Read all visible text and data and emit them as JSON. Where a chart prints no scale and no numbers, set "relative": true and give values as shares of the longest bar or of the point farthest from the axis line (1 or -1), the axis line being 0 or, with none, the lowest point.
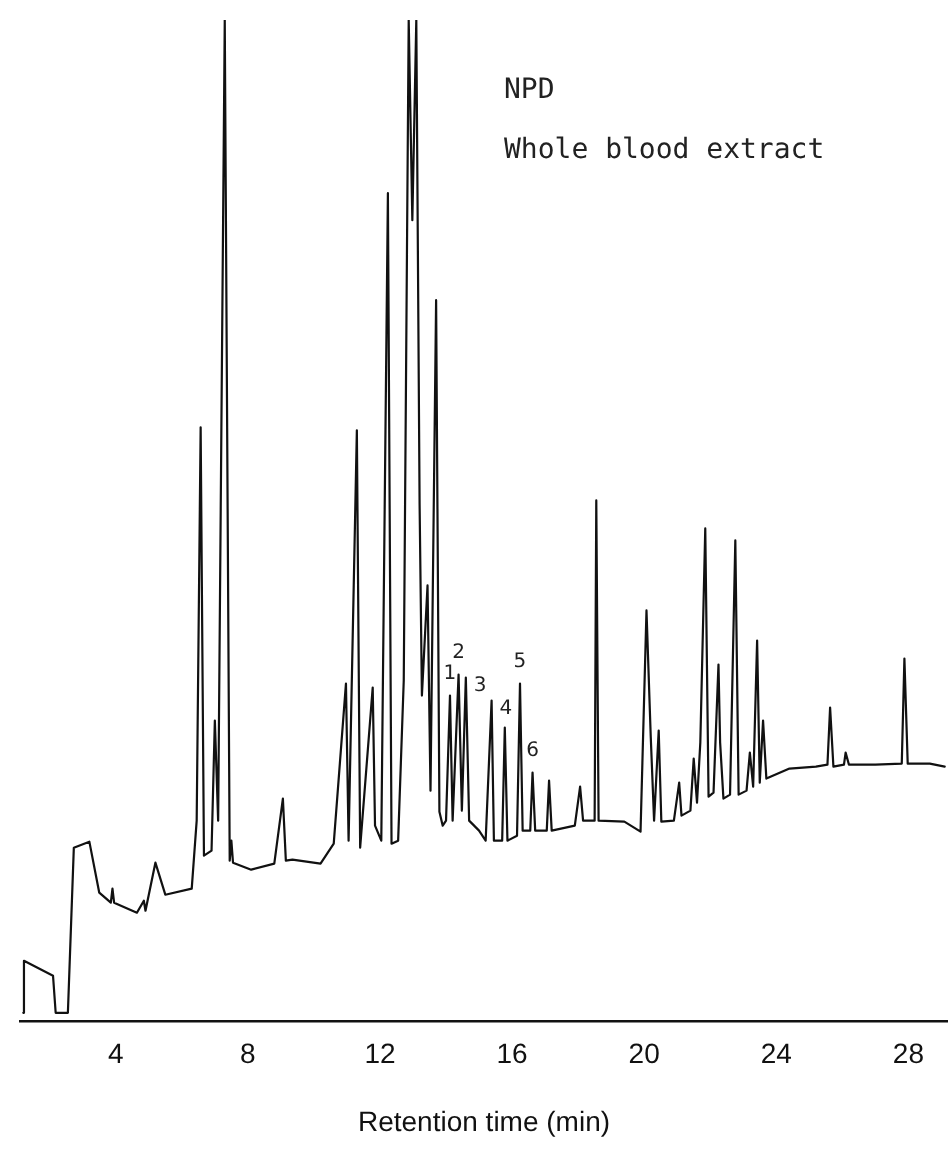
{
  "chart_data": {
    "type": "line",
    "relative": true,
    "xlabel": "Retention time (min)",
    "xlim": [
      1.1,
      29.2
    ],
    "xticks": [
      4,
      8,
      12,
      16,
      20,
      24,
      28
    ],
    "grid": false,
    "legend": false,
    "x": [
      1.2,
      1.22,
      2.1,
      2.18,
      2.55,
      2.73,
      3.2,
      3.5,
      3.85,
      3.9,
      3.95,
      4.64,
      4.85,
      4.9,
      5.2,
      5.5,
      6.3,
      6.45,
      6.57,
      6.67,
      6.9,
      7.0,
      7.1,
      7.3,
      7.45,
      7.5,
      7.55,
      8.1,
      8.8,
      9.06,
      9.15,
      9.35,
      10.2,
      10.6,
      10.97,
      11.05,
      11.3,
      11.4,
      11.78,
      11.85,
      12.04,
      12.24,
      12.35,
      12.55,
      12.72,
      12.87,
      12.98,
      13.1,
      13.2,
      13.27,
      13.44,
      13.53,
      13.7,
      13.8,
      13.9,
      14.0,
      14.12,
      14.2,
      14.38,
      14.48,
      14.6,
      14.7,
      15.0,
      15.2,
      15.38,
      15.45,
      15.7,
      15.78,
      15.86,
      16.15,
      16.24,
      16.32,
      16.55,
      16.62,
      16.7,
      17.05,
      17.12,
      17.2,
      17.9,
      18.06,
      18.15,
      18.5,
      18.55,
      18.62,
      19.4,
      19.89,
      20.07,
      20.2,
      20.3,
      20.44,
      20.52,
      20.9,
      21.06,
      21.13,
      21.4,
      21.5,
      21.6,
      21.7,
      21.85,
      21.95,
      22.1,
      22.25,
      22.3,
      22.4,
      22.6,
      22.76,
      22.86,
      23.1,
      23.2,
      23.3,
      23.42,
      23.5,
      23.6,
      23.7,
      24.4,
      25.2,
      25.55,
      25.63,
      25.73,
      26.05,
      26.1,
      26.2,
      27.0,
      27.8,
      27.88,
      27.98,
      28.65,
      29.1
    ],
    "series": [
      {
        "color": "#111111",
        "values": [
          0.008,
          0.06,
          0.045,
          0.008,
          0.008,
          0.173,
          0.179,
          0.128,
          0.118,
          0.132,
          0.118,
          0.108,
          0.12,
          0.11,
          0.158,
          0.126,
          0.132,
          0.2,
          0.593,
          0.165,
          0.17,
          0.3,
          0.2,
          1.0,
          0.16,
          0.18,
          0.158,
          0.151,
          0.157,
          0.222,
          0.16,
          0.161,
          0.157,
          0.177,
          0.337,
          0.18,
          0.59,
          0.173,
          0.333,
          0.195,
          0.18,
          0.827,
          0.177,
          0.18,
          0.34,
          1.0,
          0.8,
          1.0,
          0.516,
          0.325,
          0.435,
          0.23,
          0.72,
          0.209,
          0.195,
          0.2,
          0.325,
          0.2,
          0.346,
          0.21,
          0.343,
          0.2,
          0.19,
          0.18,
          0.32,
          0.18,
          0.18,
          0.293,
          0.18,
          0.185,
          0.337,
          0.19,
          0.19,
          0.248,
          0.19,
          0.19,
          0.24,
          0.19,
          0.195,
          0.234,
          0.2,
          0.2,
          0.52,
          0.2,
          0.199,
          0.189,
          0.41,
          0.283,
          0.2,
          0.29,
          0.199,
          0.2,
          0.238,
          0.205,
          0.21,
          0.262,
          0.218,
          0.278,
          0.492,
          0.224,
          0.228,
          0.356,
          0.278,
          0.222,
          0.226,
          0.48,
          0.226,
          0.23,
          0.268,
          0.234,
          0.38,
          0.238,
          0.3,
          0.242,
          0.252,
          0.254,
          0.256,
          0.313,
          0.254,
          0.256,
          0.268,
          0.256,
          0.256,
          0.257,
          0.362,
          0.257,
          0.257,
          0.254
        ]
      }
    ],
    "annotations": [
      "NPD",
      "Whole blood extract",
      {
        "text": "1",
        "x": 14.12,
        "y": 0.325
      },
      {
        "text": "2",
        "x": 14.38,
        "y": 0.346
      },
      {
        "text": "3",
        "x": 14.6,
        "y": 0.343
      },
      {
        "text": "4",
        "x": 15.38,
        "y": 0.32
      },
      {
        "text": "5",
        "x": 16.24,
        "y": 0.337
      },
      {
        "text": "6",
        "x": 16.62,
        "y": 0.248
      }
    ]
  }
}
